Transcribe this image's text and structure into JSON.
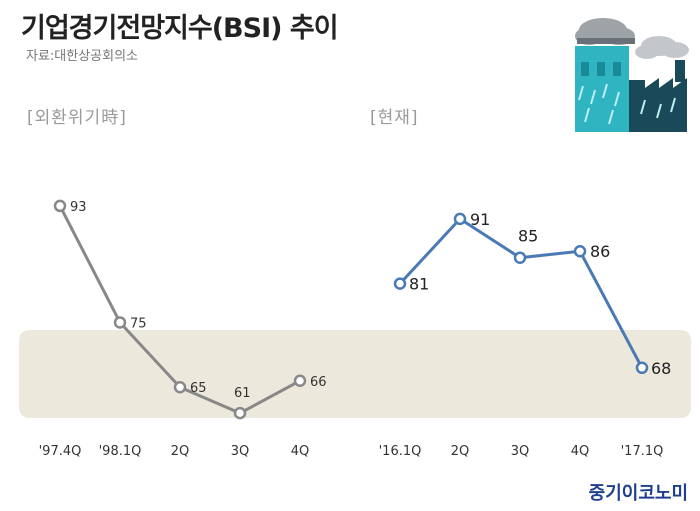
{
  "header": {
    "title": "기업경기전망지수(BSI) 추이",
    "source": "자료:대한상공회의소"
  },
  "footer": {
    "watermark": "중기이코노미"
  },
  "colors": {
    "left_line": "#888888",
    "right_line": "#4a7ab5",
    "band": "#ece8db",
    "cloud": "#9ea3a8",
    "rain": "#2fb5c1",
    "factory": "#1a4a5a"
  },
  "icons": [
    "factory-rain-icon"
  ],
  "chart_data": [
    {
      "type": "line",
      "title": "[외환위기時]",
      "categories": [
        "'97.4Q",
        "'98.1Q",
        "2Q",
        "3Q",
        "4Q"
      ],
      "series": [
        {
          "values": [
            93,
            75,
            65,
            61,
            66
          ]
        }
      ],
      "ylim": [
        55,
        97
      ],
      "grid": false
    },
    {
      "type": "line",
      "title": "[현재]",
      "categories": [
        "'16.1Q",
        "2Q",
        "3Q",
        "4Q",
        "'17.1Q"
      ],
      "series": [
        {
          "values": [
            81,
            91,
            85,
            86,
            68
          ]
        }
      ],
      "ylim": [
        55,
        97
      ],
      "grid": false
    }
  ]
}
